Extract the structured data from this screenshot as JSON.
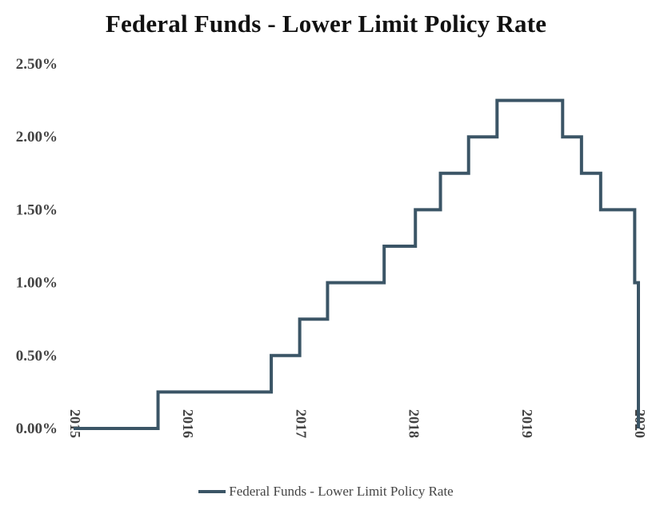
{
  "chart_data": {
    "type": "line",
    "step": true,
    "title": "Federal Funds - Lower Limit Policy Rate",
    "xlabel": "",
    "ylabel": "",
    "ylim": [
      0,
      2.5
    ],
    "xlim": [
      "2015-01-01",
      "2020-01-01"
    ],
    "y_ticks": [
      "0.00%",
      "0.50%",
      "1.00%",
      "1.50%",
      "2.00%",
      "2.50%"
    ],
    "x_ticks": [
      "2015",
      "2016",
      "2017",
      "2018",
      "2019",
      "2020"
    ],
    "grid": false,
    "legend_position": "bottom",
    "series": [
      {
        "name": "Federal Funds - Lower Limit Policy Rate",
        "color": "#3b5566",
        "points": [
          [
            "2015-01-01",
            0.0
          ],
          [
            "2015-10-01",
            0.25
          ],
          [
            "2016-10-01",
            0.5
          ],
          [
            "2017-01-01",
            0.75
          ],
          [
            "2017-04-01",
            1.0
          ],
          [
            "2017-10-01",
            1.25
          ],
          [
            "2018-01-10",
            1.5
          ],
          [
            "2018-04-01",
            1.75
          ],
          [
            "2018-07-01",
            2.0
          ],
          [
            "2018-10-01",
            2.25
          ],
          [
            "2019-05-01",
            2.0
          ],
          [
            "2019-07-01",
            1.75
          ],
          [
            "2019-09-01",
            1.5
          ],
          [
            "2019-12-20",
            1.0
          ],
          [
            "2020-01-01",
            0.0
          ]
        ]
      }
    ]
  }
}
